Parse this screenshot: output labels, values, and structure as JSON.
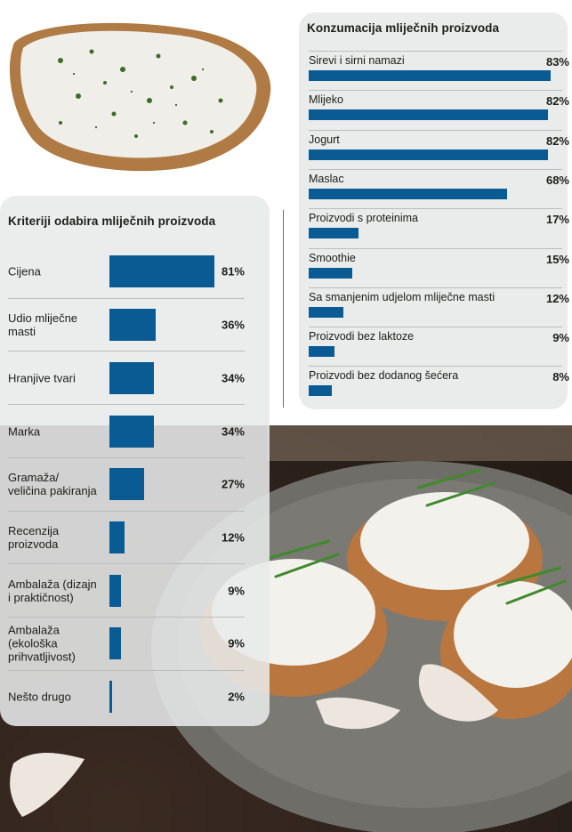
{
  "colors": {
    "bar": "#0a5b94",
    "panel": "#e9ecea"
  },
  "icons": [
    "bread-with-cream-cheese-photo",
    "cottage-cheese-toast-photo"
  ],
  "chart_data": [
    {
      "type": "bar",
      "orientation": "horizontal",
      "title": "Konzumacija mliječnih proizvoda",
      "unit": "%",
      "xlim": [
        0,
        85
      ],
      "categories": [
        "Sirevi i sirni namazi",
        "Mlijeko",
        "Jogurt",
        "Maslac",
        "Proizvodi s proteinima",
        "Smoothie",
        "Sa smanjenim udjelom mliječne masti",
        "Proizvodi bez laktoze",
        "Proizvodi bez dodanog šećera"
      ],
      "values": [
        83,
        82,
        82,
        68,
        17,
        15,
        12,
        9,
        8
      ],
      "value_labels": [
        "83%",
        "82%",
        "82%",
        "68%",
        "17%",
        "15%",
        "12%",
        "9%",
        "8%"
      ]
    },
    {
      "type": "bar",
      "orientation": "horizontal",
      "title": "Kriteriji odabira mliječnih proizvoda",
      "unit": "%",
      "xlim": [
        0,
        85
      ],
      "categories": [
        "Cijena",
        "Udio mliječne masti",
        "Hranjive tvari",
        "Marka",
        "Gramaža/ veličina pakiranja",
        "Recenzija proizvoda",
        "Ambalaža (dizajn i praktičnost)",
        "Ambalaža (ekološka prihvatljivost)",
        "Nešto drugo"
      ],
      "values": [
        81,
        36,
        34,
        34,
        27,
        12,
        9,
        9,
        2
      ],
      "value_labels": [
        "81%",
        "36%",
        "34%",
        "34%",
        "27%",
        "12%",
        "9%",
        "9%",
        "2%"
      ]
    }
  ]
}
